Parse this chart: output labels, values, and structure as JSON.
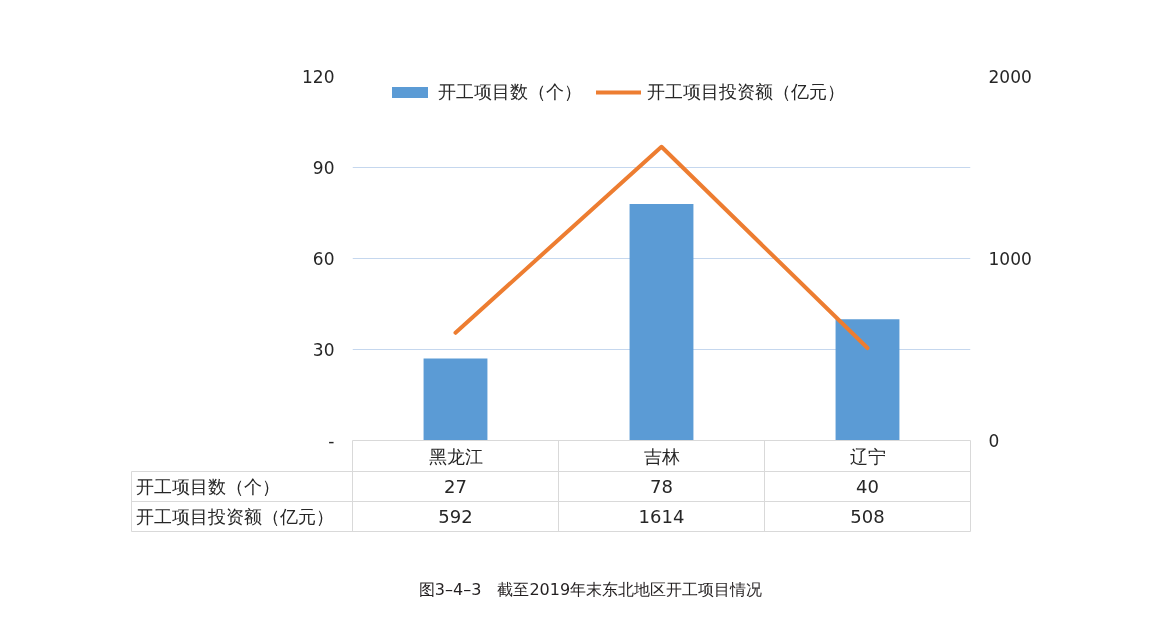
{
  "chart_data": {
    "type": "bar",
    "categories": [
      "黑龙江",
      "吉林",
      "辽宁"
    ],
    "series": [
      {
        "name": "开工项目数（个）",
        "color": "#5b9bd5",
        "values": [
          27,
          78,
          40
        ]
      },
      {
        "name": "开工项目投资额（亿元）",
        "type": "line",
        "axis": "y2",
        "color": "#ed7d31",
        "values": [
          592,
          1614,
          508
        ]
      }
    ],
    "ylim": [
      0,
      120
    ],
    "yticks": [
      {
        "value": 0,
        "label": "-"
      },
      30,
      60,
      90,
      120
    ],
    "y2lim": [
      0,
      2000
    ],
    "y2ticks": [
      0,
      1000,
      2000
    ],
    "grid": "y",
    "legend": "top",
    "data_labels": true,
    "annotations": [
      "图3–4–3　截至2019年末东北地区开工项目情况"
    ]
  }
}
